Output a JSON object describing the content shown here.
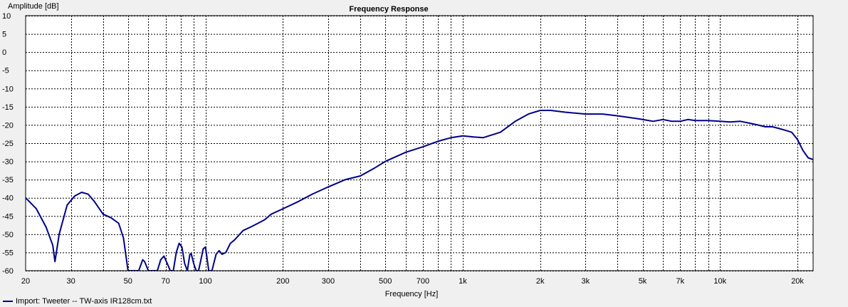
{
  "chart_data": {
    "type": "line",
    "title": "Frequency Response",
    "xlabel": "Frequency [Hz]",
    "ylabel": "Amplitude [dB]",
    "xscale": "log",
    "xlim": [
      20,
      23000
    ],
    "ylim": [
      -60,
      10
    ],
    "grid": true,
    "legend_position": "bottom-left",
    "x_ticks": [
      {
        "value": 20,
        "label": "20"
      },
      {
        "value": 30,
        "label": "30"
      },
      {
        "value": 50,
        "label": "50"
      },
      {
        "value": 70,
        "label": "70"
      },
      {
        "value": 100,
        "label": "100"
      },
      {
        "value": 200,
        "label": "200"
      },
      {
        "value": 300,
        "label": "300"
      },
      {
        "value": 500,
        "label": "500"
      },
      {
        "value": 700,
        "label": "700"
      },
      {
        "value": 1000,
        "label": "1k"
      },
      {
        "value": 2000,
        "label": "2k"
      },
      {
        "value": 3000,
        "label": "3k"
      },
      {
        "value": 5000,
        "label": "5k"
      },
      {
        "value": 7000,
        "label": "7k"
      },
      {
        "value": 10000,
        "label": "10k"
      },
      {
        "value": 20000,
        "label": "20k"
      }
    ],
    "y_ticks": [
      10,
      5,
      0,
      -5,
      -10,
      -15,
      -20,
      -25,
      -30,
      -35,
      -40,
      -45,
      -50,
      -55,
      -60
    ],
    "series": [
      {
        "name": "Import: Tweeter -- TW-axis IR128cm.txt",
        "color": "#00008b",
        "x": [
          20,
          22,
          24,
          25.5,
          26,
          27,
          29,
          31,
          33,
          35,
          37,
          40,
          43,
          46,
          48,
          50,
          52,
          55,
          57,
          58,
          60,
          62,
          65,
          67,
          69,
          71,
          73,
          75,
          77,
          79,
          81,
          83,
          85,
          87,
          88,
          90,
          92,
          94,
          96,
          98,
          100,
          103,
          106,
          110,
          113,
          116,
          120,
          125,
          130,
          140,
          150,
          160,
          170,
          180,
          200,
          230,
          260,
          300,
          350,
          400,
          450,
          500,
          600,
          700,
          800,
          900,
          1000,
          1100,
          1200,
          1400,
          1600,
          1800,
          2000,
          2200,
          2500,
          3000,
          3500,
          4000,
          4500,
          5000,
          5500,
          6000,
          6500,
          7000,
          7500,
          8000,
          9000,
          10000,
          11000,
          12000,
          13000,
          14000,
          15000,
          16000,
          17000,
          18000,
          19000,
          20000,
          21000,
          22000,
          23000
        ],
        "y": [
          -40,
          -43,
          -48,
          -53,
          -57.5,
          -50,
          -42,
          -39.5,
          -38.5,
          -39,
          -41,
          -44.5,
          -45.5,
          -47,
          -51,
          -60,
          -60,
          -60,
          -57,
          -57.5,
          -60,
          -60,
          -60,
          -57,
          -56,
          -58,
          -60,
          -60,
          -55,
          -52.5,
          -53.5,
          -58,
          -60,
          -55.5,
          -55.3,
          -58,
          -60,
          -60,
          -57,
          -54,
          -53.5,
          -60,
          -60,
          -55.5,
          -54.5,
          -55.5,
          -55,
          -52.5,
          -51.5,
          -49,
          -48,
          -47,
          -46,
          -44.5,
          -43,
          -41,
          -39,
          -37,
          -35,
          -34,
          -32,
          -30,
          -27.5,
          -26,
          -24.5,
          -23.5,
          -23,
          -23.3,
          -23.5,
          -22,
          -19,
          -17,
          -16,
          -16,
          -16.5,
          -17,
          -17,
          -17.5,
          -18,
          -18.5,
          -19,
          -18.5,
          -19,
          -19,
          -18.5,
          -18.8,
          -18.8,
          -19,
          -19.2,
          -19,
          -19.5,
          -20,
          -20.5,
          -20.5,
          -21,
          -21.5,
          -22,
          -24,
          -27,
          -29,
          -29.5
        ]
      }
    ]
  }
}
